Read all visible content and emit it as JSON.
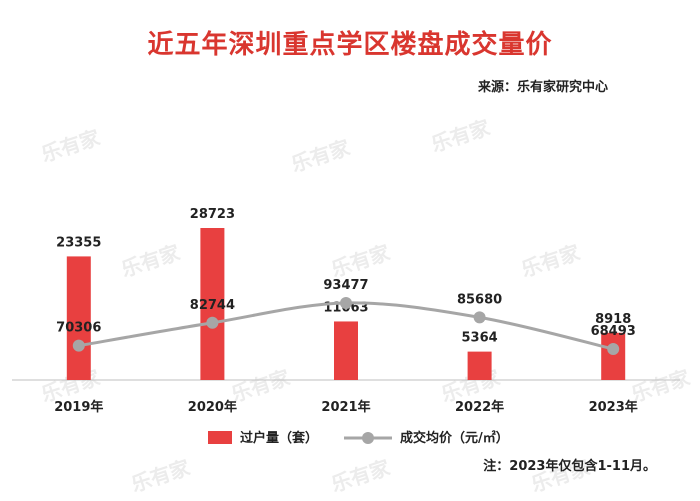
{
  "title": "近五年深圳重点学区楼盘成交量价",
  "source": "来源：乐有家研究中心",
  "note": "注：2023年仅包含1-11月。",
  "watermark": "乐有家",
  "chart_data": {
    "type": "bar",
    "categories": [
      "2019年",
      "2020年",
      "2021年",
      "2022年",
      "2023年"
    ],
    "series": [
      {
        "name": "过户量（套）",
        "type": "bar",
        "color": "#e84040",
        "values": [
          23355,
          28723,
          11063,
          5364,
          8918
        ]
      },
      {
        "name": "成交均价（元/㎡）",
        "type": "line",
        "color": "#a6a6a6",
        "values": [
          70306,
          82744,
          93477,
          85680,
          68493
        ]
      }
    ],
    "legend_position": "bottom",
    "grid": false
  }
}
